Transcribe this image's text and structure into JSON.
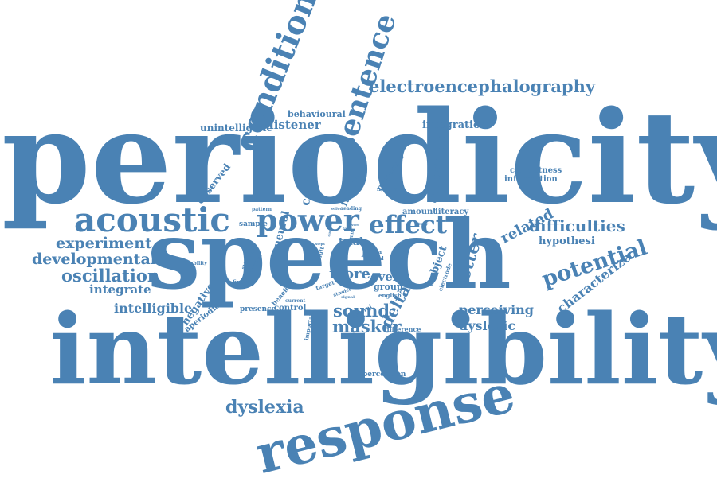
{
  "accent_color": "#4a82b4",
  "words": [
    "periodicity",
    "speech",
    "intelligibility",
    "response",
    "condition",
    "sentence",
    "electroencephalography",
    "acoustic",
    "power",
    "effect",
    "difficulties",
    "potential",
    "experiment",
    "developmental",
    "oscillation",
    "integrate",
    "intelligible",
    "dyslexia",
    "listener",
    "letter",
    "sound",
    "masker",
    "dyslexic",
    "perceiving",
    "related",
    "characterize",
    "more",
    "event",
    "delta",
    "subject",
    "hypothesi",
    "integration",
    "unintelligible",
    "behavioural",
    "correctness",
    "information",
    "congruent",
    "associated",
    "observed",
    "negative",
    "aperiodic",
    "trial",
    "amount",
    "literacy",
    "neural",
    "sample",
    "failure",
    "properties",
    "natural",
    "group",
    "english",
    "presence",
    "control",
    "benefit",
    "important",
    "difference",
    "perception",
    "finding",
    "inability",
    "stimulus",
    "reaction",
    "pattern",
    "reading",
    "result",
    "role",
    "data",
    "visual",
    "cortical",
    "electrode",
    "several",
    "studies",
    "target",
    "trend",
    "current",
    "signal",
    "study",
    "noise",
    "child",
    "task",
    "duration",
    "word",
    "effect",
    "steps",
    "band"
  ]
}
